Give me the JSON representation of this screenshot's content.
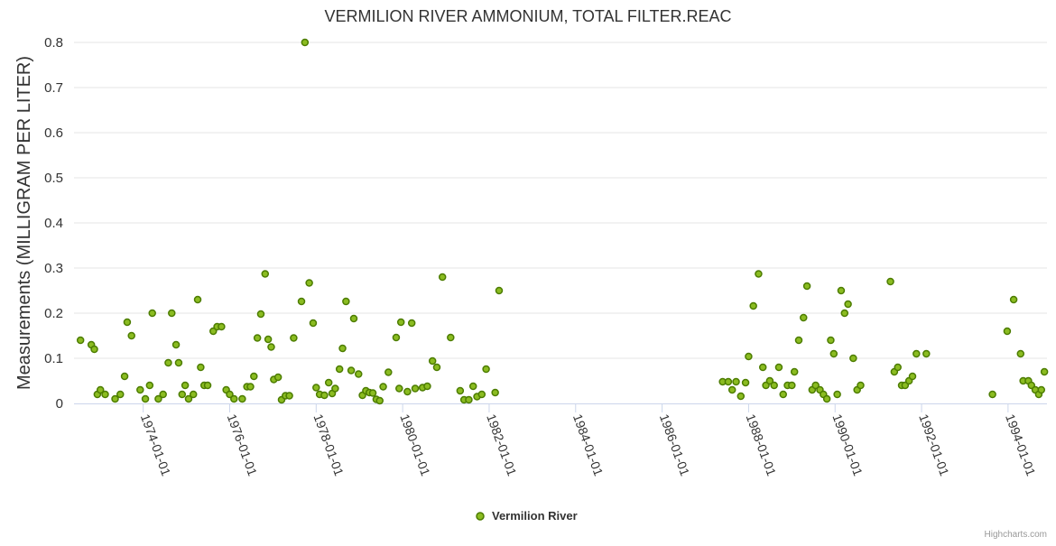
{
  "chart_data": {
    "type": "scatter",
    "title": "VERMILION RIVER AMMONIUM, TOTAL FILTER.REAC",
    "xlabel": "",
    "ylabel": "Measurements (MILLIGRAM PER LITER)",
    "xlim": [
      1972.4,
      1994.9
    ],
    "ylim": [
      0,
      0.8
    ],
    "y_ticks": [
      "0",
      "0.1",
      "0.2",
      "0.3",
      "0.4",
      "0.5",
      "0.6",
      "0.7",
      "0.8"
    ],
    "x_ticks": [
      {
        "label": "1974-01-01",
        "year": 1974
      },
      {
        "label": "1976-01-01",
        "year": 1976
      },
      {
        "label": "1978-01-01",
        "year": 1978
      },
      {
        "label": "1980-01-01",
        "year": 1980
      },
      {
        "label": "1982-01-01",
        "year": 1982
      },
      {
        "label": "1984-01-01",
        "year": 1984
      },
      {
        "label": "1986-01-01",
        "year": 1986
      },
      {
        "label": "1988-01-01",
        "year": 1988
      },
      {
        "label": "1990-01-01",
        "year": 1990
      },
      {
        "label": "1992-01-01",
        "year": 1992
      },
      {
        "label": "1994-01-01",
        "year": 1994
      }
    ],
    "grid": true,
    "legend_position": "bottom-center",
    "series": [
      {
        "name": "Vermilion River",
        "color": "#8bbc21",
        "stroke_color": "#4c7c00",
        "points": [
          [
            1972.55,
            0.14
          ],
          [
            1972.8,
            0.13
          ],
          [
            1972.87,
            0.12
          ],
          [
            1972.94,
            0.02
          ],
          [
            1973.01,
            0.03
          ],
          [
            1973.12,
            0.02
          ],
          [
            1973.35,
            0.01
          ],
          [
            1973.47,
            0.02
          ],
          [
            1973.57,
            0.06
          ],
          [
            1973.63,
            0.18
          ],
          [
            1973.73,
            0.15
          ],
          [
            1973.93,
            0.03
          ],
          [
            1974.05,
            0.01
          ],
          [
            1974.15,
            0.04
          ],
          [
            1974.21,
            0.2
          ],
          [
            1974.35,
            0.01
          ],
          [
            1974.46,
            0.02
          ],
          [
            1974.58,
            0.09
          ],
          [
            1974.66,
            0.2
          ],
          [
            1974.76,
            0.13
          ],
          [
            1974.82,
            0.09
          ],
          [
            1974.9,
            0.02
          ],
          [
            1974.97,
            0.04
          ],
          [
            1975.05,
            0.01
          ],
          [
            1975.16,
            0.02
          ],
          [
            1975.26,
            0.23
          ],
          [
            1975.33,
            0.08
          ],
          [
            1975.41,
            0.04
          ],
          [
            1975.49,
            0.04
          ],
          [
            1975.62,
            0.16
          ],
          [
            1975.71,
            0.17
          ],
          [
            1975.81,
            0.17
          ],
          [
            1975.92,
            0.03
          ],
          [
            1976.0,
            0.02
          ],
          [
            1976.1,
            0.01
          ],
          [
            1976.29,
            0.01
          ],
          [
            1976.4,
            0.037
          ],
          [
            1976.48,
            0.037
          ],
          [
            1976.56,
            0.06
          ],
          [
            1976.64,
            0.145
          ],
          [
            1976.72,
            0.198
          ],
          [
            1976.82,
            0.287
          ],
          [
            1976.89,
            0.142
          ],
          [
            1976.96,
            0.125
          ],
          [
            1977.02,
            0.053
          ],
          [
            1977.12,
            0.058
          ],
          [
            1977.2,
            0.008
          ],
          [
            1977.29,
            0.017
          ],
          [
            1977.38,
            0.017
          ],
          [
            1977.48,
            0.145
          ],
          [
            1977.66,
            0.226
          ],
          [
            1977.74,
            0.8
          ],
          [
            1977.84,
            0.267
          ],
          [
            1977.93,
            0.178
          ],
          [
            1978.0,
            0.035
          ],
          [
            1978.08,
            0.02
          ],
          [
            1978.19,
            0.018
          ],
          [
            1978.29,
            0.046
          ],
          [
            1978.37,
            0.022
          ],
          [
            1978.44,
            0.033
          ],
          [
            1978.54,
            0.076
          ],
          [
            1978.61,
            0.122
          ],
          [
            1978.69,
            0.226
          ],
          [
            1978.81,
            0.073
          ],
          [
            1978.87,
            0.188
          ],
          [
            1978.98,
            0.065
          ],
          [
            1979.07,
            0.018
          ],
          [
            1979.15,
            0.028
          ],
          [
            1979.23,
            0.024
          ],
          [
            1979.31,
            0.023
          ],
          [
            1979.39,
            0.009
          ],
          [
            1979.47,
            0.006
          ],
          [
            1979.55,
            0.037
          ],
          [
            1979.67,
            0.069
          ],
          [
            1979.85,
            0.146
          ],
          [
            1979.92,
            0.033
          ],
          [
            1979.96,
            0.18
          ],
          [
            1980.11,
            0.026
          ],
          [
            1980.21,
            0.178
          ],
          [
            1980.29,
            0.033
          ],
          [
            1980.46,
            0.035
          ],
          [
            1980.57,
            0.038
          ],
          [
            1980.69,
            0.094
          ],
          [
            1980.79,
            0.08
          ],
          [
            1980.92,
            0.28
          ],
          [
            1981.11,
            0.146
          ],
          [
            1981.33,
            0.028
          ],
          [
            1981.42,
            0.008
          ],
          [
            1981.53,
            0.008
          ],
          [
            1981.63,
            0.038
          ],
          [
            1981.72,
            0.015
          ],
          [
            1981.83,
            0.02
          ],
          [
            1981.93,
            0.076
          ],
          [
            1982.14,
            0.024
          ],
          [
            1982.23,
            0.25
          ],
          [
            1987.4,
            0.048
          ],
          [
            1987.53,
            0.048
          ],
          [
            1987.62,
            0.03
          ],
          [
            1987.71,
            0.048
          ],
          [
            1987.82,
            0.016
          ],
          [
            1987.93,
            0.046
          ],
          [
            1988.0,
            0.104
          ],
          [
            1988.11,
            0.216
          ],
          [
            1988.23,
            0.287
          ],
          [
            1988.33,
            0.08
          ],
          [
            1988.4,
            0.04
          ],
          [
            1988.49,
            0.05
          ],
          [
            1988.59,
            0.04
          ],
          [
            1988.7,
            0.08
          ],
          [
            1988.8,
            0.02
          ],
          [
            1988.9,
            0.04
          ],
          [
            1989.0,
            0.04
          ],
          [
            1989.06,
            0.07
          ],
          [
            1989.16,
            0.14
          ],
          [
            1989.27,
            0.19
          ],
          [
            1989.35,
            0.26
          ],
          [
            1989.47,
            0.03
          ],
          [
            1989.55,
            0.04
          ],
          [
            1989.65,
            0.03
          ],
          [
            1989.73,
            0.02
          ],
          [
            1989.81,
            0.01
          ],
          [
            1989.9,
            0.14
          ],
          [
            1989.97,
            0.11
          ],
          [
            1990.05,
            0.02
          ],
          [
            1990.14,
            0.25
          ],
          [
            1990.22,
            0.2
          ],
          [
            1990.3,
            0.22
          ],
          [
            1990.42,
            0.1
          ],
          [
            1990.51,
            0.03
          ],
          [
            1990.59,
            0.04
          ],
          [
            1991.28,
            0.27
          ],
          [
            1991.37,
            0.07
          ],
          [
            1991.45,
            0.08
          ],
          [
            1991.54,
            0.04
          ],
          [
            1991.62,
            0.04
          ],
          [
            1991.71,
            0.05
          ],
          [
            1991.79,
            0.06
          ],
          [
            1991.88,
            0.11
          ],
          [
            1992.11,
            0.11
          ],
          [
            1993.64,
            0.02
          ],
          [
            1993.98,
            0.16
          ],
          [
            1994.13,
            0.23
          ],
          [
            1994.29,
            0.11
          ],
          [
            1994.35,
            0.05
          ],
          [
            1994.47,
            0.05
          ],
          [
            1994.54,
            0.04
          ],
          [
            1994.63,
            0.03
          ],
          [
            1994.71,
            0.02
          ],
          [
            1994.77,
            0.03
          ],
          [
            1994.84,
            0.07
          ]
        ]
      }
    ]
  },
  "credits": "Highcharts.com"
}
